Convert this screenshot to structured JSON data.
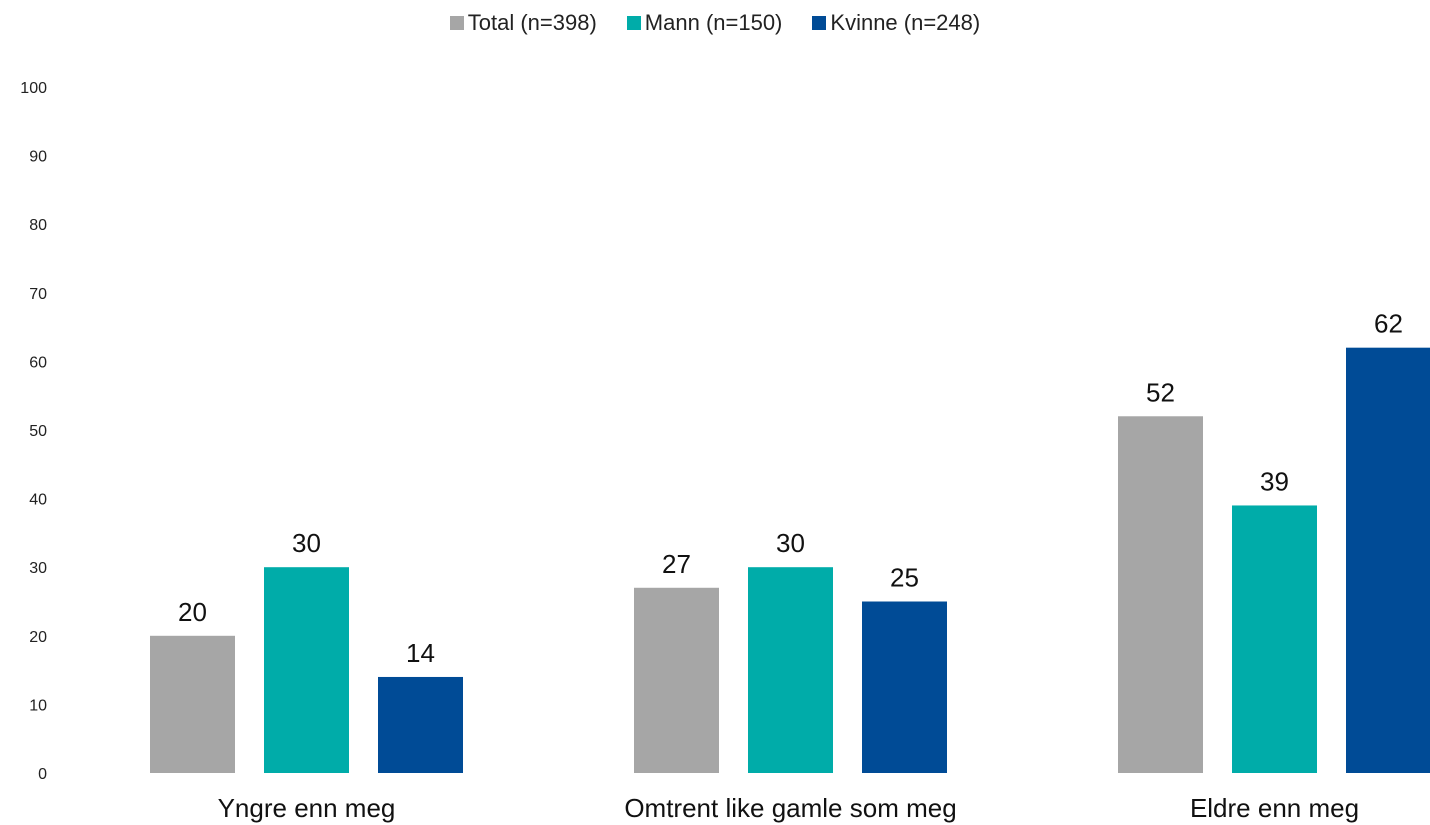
{
  "chart_data": {
    "type": "bar",
    "categories": [
      "Yngre enn meg",
      "Omtrent like gamle som meg",
      "Eldre enn meg"
    ],
    "series": [
      {
        "name": "Total (n=398)",
        "color": "#a6a6a6",
        "values": [
          20,
          27,
          52
        ]
      },
      {
        "name": "Mann (n=150)",
        "color": "#00aca9",
        "values": [
          30,
          30,
          39
        ]
      },
      {
        "name": "Kvinne (n=248)",
        "color": "#004b96",
        "values": [
          14,
          25,
          62
        ]
      }
    ],
    "ylim": [
      0,
      100
    ],
    "yticks": [
      0,
      10,
      20,
      30,
      40,
      50,
      60,
      70,
      80,
      90,
      100
    ],
    "grid": false,
    "legend_position": "top-center",
    "data_labels": true
  }
}
